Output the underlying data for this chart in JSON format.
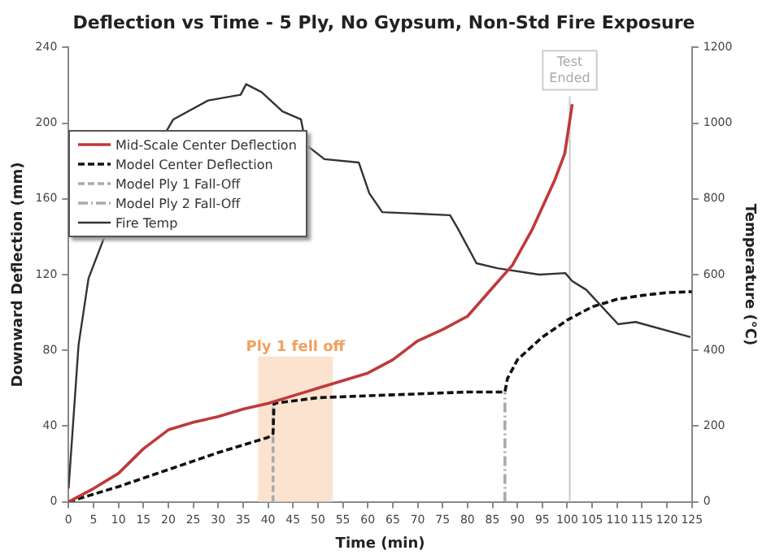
{
  "chart_data": {
    "type": "line",
    "title": "Deflection vs Time - 5 Ply, No Gypsum, Non-Std Fire Exposure",
    "xlabel": "Time (min)",
    "ylabel": "Downward Deflection (mm)",
    "y2label": "Temperature (°C)",
    "xlim": [
      0,
      125
    ],
    "xticks": [
      0,
      5,
      10,
      15,
      20,
      25,
      30,
      35,
      40,
      45,
      50,
      55,
      60,
      65,
      70,
      75,
      80,
      85,
      90,
      95,
      100,
      105,
      110,
      115,
      120,
      125
    ],
    "ylim": [
      0,
      240
    ],
    "yticks": [
      0,
      40,
      80,
      120,
      160,
      200,
      240
    ],
    "y2lim": [
      0,
      1200
    ],
    "y2ticks": [
      0,
      200,
      400,
      600,
      800,
      1000,
      1200
    ],
    "grid": false,
    "legend": "top left",
    "marker": "none",
    "series": [
      {
        "name": "Mid-Scale Center Deflection",
        "color": "#c0393b",
        "line_style": "solid",
        "x": [
          0,
          5,
          10,
          15,
          20,
          25,
          30,
          35,
          40,
          45,
          50,
          55,
          60,
          65,
          70,
          75,
          80,
          85,
          89,
          93,
          97.5,
          99.5,
          101
        ],
        "values": [
          0,
          7,
          15,
          28,
          38,
          42,
          45,
          49,
          52,
          56,
          60,
          64,
          68,
          75,
          85,
          91,
          98,
          113,
          125,
          144,
          170,
          184,
          210
        ]
      },
      {
        "name": "Model Center Deflection",
        "color": "#111111",
        "line_style": "dashed",
        "x": [
          0,
          10,
          20,
          30,
          40,
          41,
          41.2,
          50,
          60,
          70,
          80,
          87.5,
          88,
          90,
          95,
          100,
          105,
          110,
          115,
          120,
          125
        ],
        "values": [
          0,
          8,
          17,
          26,
          34,
          36,
          52,
          55,
          56,
          57,
          58,
          58,
          65,
          75,
          87,
          96,
          103,
          107,
          109,
          110.5,
          111
        ]
      },
      {
        "name": "Model Ply 1 Fall-Off",
        "color": "#aaaaaa",
        "line_style": "dashed",
        "x": [
          41,
          41
        ],
        "values": [
          0,
          52
        ]
      },
      {
        "name": "Model Ply 2 Fall-Off",
        "color": "#aaaaaa",
        "line_style": "dashdot",
        "x": [
          87.5,
          87.5
        ],
        "values": [
          0,
          58
        ]
      },
      {
        "name": "Fire Temp",
        "color": "#333333",
        "line_style": "solid",
        "axis": "y2",
        "x": [
          0,
          2,
          4,
          7,
          12,
          16,
          21,
          28,
          34.5,
          35.6,
          38.7,
          42.9,
          46.6,
          47.6,
          51.3,
          58.2,
          60.3,
          62.9,
          76.5,
          78,
          81.8,
          86,
          94.4,
          99.6,
          101,
          103.8,
          110.2,
          113.7,
          124.7
        ],
        "values": [
          35,
          414,
          590,
          693,
          null,
          null,
          1010,
          1060,
          1075,
          1103,
          1082,
          1031,
          1010,
          943,
          905,
          896,
          815,
          765,
          757,
          723,
          630,
          617,
          600,
          604,
          583,
          560,
          469,
          475,
          435
        ]
      }
    ],
    "ref_lines": [
      {
        "axis": "x",
        "value": 100.5,
        "label": "Test Ended",
        "color": "#c8c8c8"
      }
    ],
    "bands": [
      {
        "axis": "x",
        "from": 38,
        "to": 53,
        "label": "Ply 1 fell off",
        "color": "#fbe3d0"
      }
    ]
  }
}
